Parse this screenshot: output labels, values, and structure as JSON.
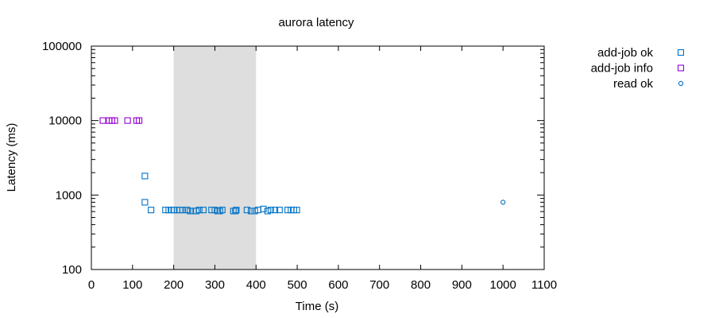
{
  "chart_data": {
    "type": "scatter",
    "title": "aurora latency",
    "xlabel": "Time (s)",
    "ylabel": "Latency (ms)",
    "xlim": [
      0,
      1100
    ],
    "ylim": [
      100,
      100000
    ],
    "yscale": "log",
    "xticks": [
      0,
      100,
      200,
      300,
      400,
      500,
      600,
      700,
      800,
      900,
      1000,
      1100
    ],
    "yticks": [
      100,
      1000,
      10000,
      100000
    ],
    "xtick_labels": [
      "0",
      "100",
      "200",
      "300",
      "400",
      "500",
      "600",
      "700",
      "800",
      "900",
      "1000",
      "1100"
    ],
    "ytick_labels": [
      "100",
      "1000",
      "10000",
      "100000"
    ],
    "shaded_region": {
      "x": [
        200,
        400
      ],
      "color": "#dedede"
    },
    "grid": false,
    "legend_position": "top-right outside",
    "series": [
      {
        "name": "add-job ok",
        "marker": "square",
        "color": "#0072c6",
        "points": [
          [
            130,
            1800
          ],
          [
            130,
            800
          ],
          [
            145,
            630
          ],
          [
            180,
            630
          ],
          [
            188,
            630
          ],
          [
            195,
            630
          ],
          [
            200,
            630
          ],
          [
            208,
            630
          ],
          [
            215,
            630
          ],
          [
            222,
            630
          ],
          [
            232,
            630
          ],
          [
            240,
            610
          ],
          [
            248,
            610
          ],
          [
            255,
            610
          ],
          [
            262,
            630
          ],
          [
            272,
            630
          ],
          [
            292,
            630
          ],
          [
            300,
            630
          ],
          [
            307,
            610
          ],
          [
            312,
            610
          ],
          [
            318,
            630
          ],
          [
            345,
            610
          ],
          [
            350,
            610
          ],
          [
            352,
            630
          ],
          [
            378,
            630
          ],
          [
            388,
            610
          ],
          [
            397,
            610
          ],
          [
            405,
            630
          ],
          [
            418,
            650
          ],
          [
            428,
            610
          ],
          [
            436,
            630
          ],
          [
            446,
            630
          ],
          [
            457,
            630
          ],
          [
            477,
            630
          ],
          [
            485,
            630
          ],
          [
            492,
            630
          ],
          [
            499,
            630
          ]
        ]
      },
      {
        "name": "add-job info",
        "marker": "square",
        "color": "#9400d3",
        "points": [
          [
            28,
            10000
          ],
          [
            43,
            10000
          ],
          [
            50,
            10000
          ],
          [
            57,
            10000
          ],
          [
            88,
            10000
          ],
          [
            110,
            10000
          ],
          [
            116,
            10000
          ]
        ]
      },
      {
        "name": "read ok",
        "marker": "circle",
        "color": "#0072c6",
        "points": [
          [
            1000,
            800
          ]
        ]
      }
    ]
  }
}
